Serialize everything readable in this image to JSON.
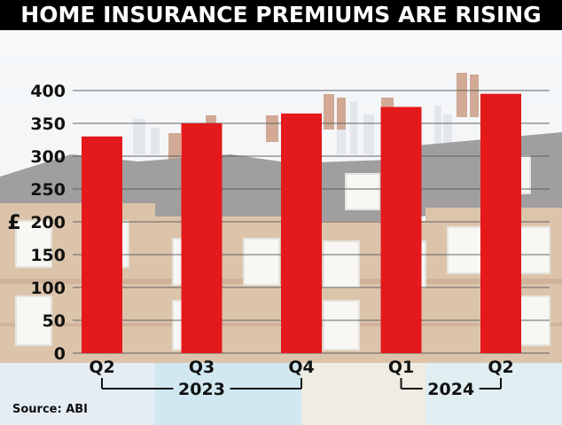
{
  "title": "HOME INSURANCE PREMIUMS ARE RISING",
  "source": "Source: ABI",
  "colors": {
    "bar": "#e4191c",
    "title_bg": "#000000",
    "title_text": "#ffffff"
  },
  "chart_data": {
    "type": "bar",
    "title": "HOME INSURANCE PREMIUMS ARE RISING",
    "xlabel": "",
    "ylabel": "£",
    "categories": [
      "Q2",
      "Q3",
      "Q4",
      "Q1",
      "Q2"
    ],
    "year_groups": [
      {
        "label": "2023",
        "categories": [
          "Q2",
          "Q3",
          "Q4"
        ]
      },
      {
        "label": "2024",
        "categories": [
          "Q1",
          "Q2"
        ]
      }
    ],
    "values": [
      330,
      350,
      365,
      375,
      395
    ],
    "ylim": [
      0,
      400
    ],
    "yticks": [
      0,
      50,
      100,
      150,
      200,
      250,
      300,
      350,
      400
    ],
    "grid": true,
    "legend": "none"
  }
}
